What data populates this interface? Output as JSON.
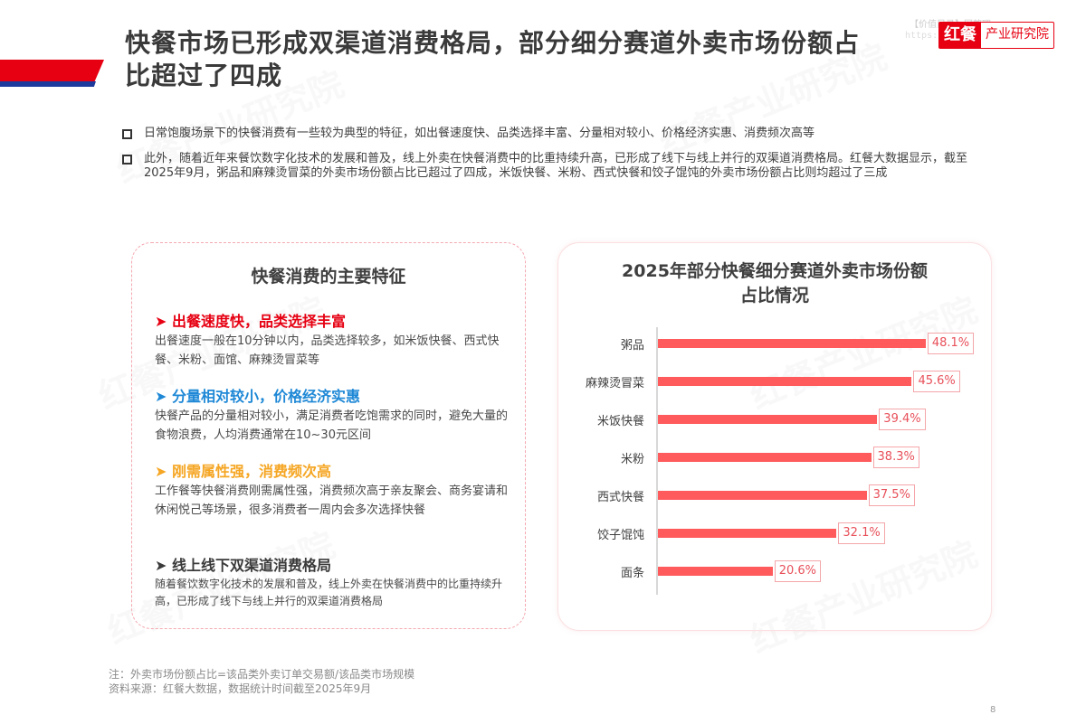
{
  "header": {
    "title_line1": "快餐市场已形成双渠道消费格局，部分细分赛道外卖市场份额占",
    "title_line2": "比超过了四成",
    "logo_brand": "红餐",
    "logo_text": "产业研究院",
    "logo_watermark1": "【价值目录】网整理",
    "logo_watermark2": "https://www.........cn"
  },
  "bullets": [
    "日常饱腹场景下的快餐消费有一些较为典型的特征，如出餐速度快、品类选择丰富、分量相对较小、价格经济实惠、消费频次高等",
    "此外，随着近年来餐饮数字化技术的发展和普及，线上外卖在快餐消费中的比重持续升高，已形成了线下与线上并行的双渠道消费格局。红餐大数据显示，截至2025年9月，粥品和麻辣烫冒菜的外卖市场份额占比已超过了四成，米饭快餐、米粉、西式快餐和饺子馄饨的外卖市场份额占比则均超过了三成"
  ],
  "features_card": {
    "title": "快餐消费的主要特征",
    "items": [
      {
        "heading": "➤ 出餐速度快，品类选择丰富",
        "color": "#e60012",
        "body": "出餐速度一般在10分钟以内，品类选择较多，如米饭快餐、西式快餐、米粉、面馆、麻辣烫冒菜等"
      },
      {
        "heading": "➤ 分量相对较小，价格经济实惠",
        "color": "#1e88d6",
        "body": "快餐产品的分量相对较小，满足消费者吃饱需求的同时，避免大量的食物浪费，人均消费通常在10~30元区间"
      },
      {
        "heading": "➤ 刚需属性强，消费频次高",
        "color": "#f5a623",
        "body": "工作餐等快餐消费刚需属性强，消费频次高于亲友聚会、商务宴请和休闲悦己等场景，很多消费者一周内会多次选择快餐"
      },
      {
        "heading": "➤ 线上线下双渠道消费格局",
        "color": "#3a3a3a",
        "body": "随着餐饮数字化技术的发展和普及，线上外卖在快餐消费中的比重持续升高，已形成了线下与线上并行的双渠道消费格局"
      }
    ]
  },
  "chart_data": {
    "type": "bar",
    "orientation": "horizontal",
    "title": "2025年部分快餐细分赛道外卖市场份额占比情况",
    "title_line1": "2025年部分快餐细分赛道外卖市场份额",
    "title_line2": "占比情况",
    "categories": [
      "粥品",
      "麻辣烫冒菜",
      "米饭快餐",
      "米粉",
      "西式快餐",
      "饺子馄饨",
      "面条"
    ],
    "values": [
      48.1,
      45.6,
      39.4,
      38.3,
      37.5,
      32.1,
      20.6
    ],
    "labels": [
      "48.1%",
      "45.6%",
      "39.4%",
      "38.3%",
      "37.5%",
      "32.1%",
      "20.6%"
    ],
    "unit": "%",
    "xlabel": "",
    "ylabel": "",
    "grid": false,
    "bar_color": "#ff5a5c"
  },
  "footer": {
    "note": "注：外卖市场份额占比=该品类外卖订单交易额/该品类市场规模",
    "source": "资料来源：红餐大数据，数据统计时间截至2025年9月",
    "page_number": "8"
  },
  "watermark": "红餐产业研究院"
}
